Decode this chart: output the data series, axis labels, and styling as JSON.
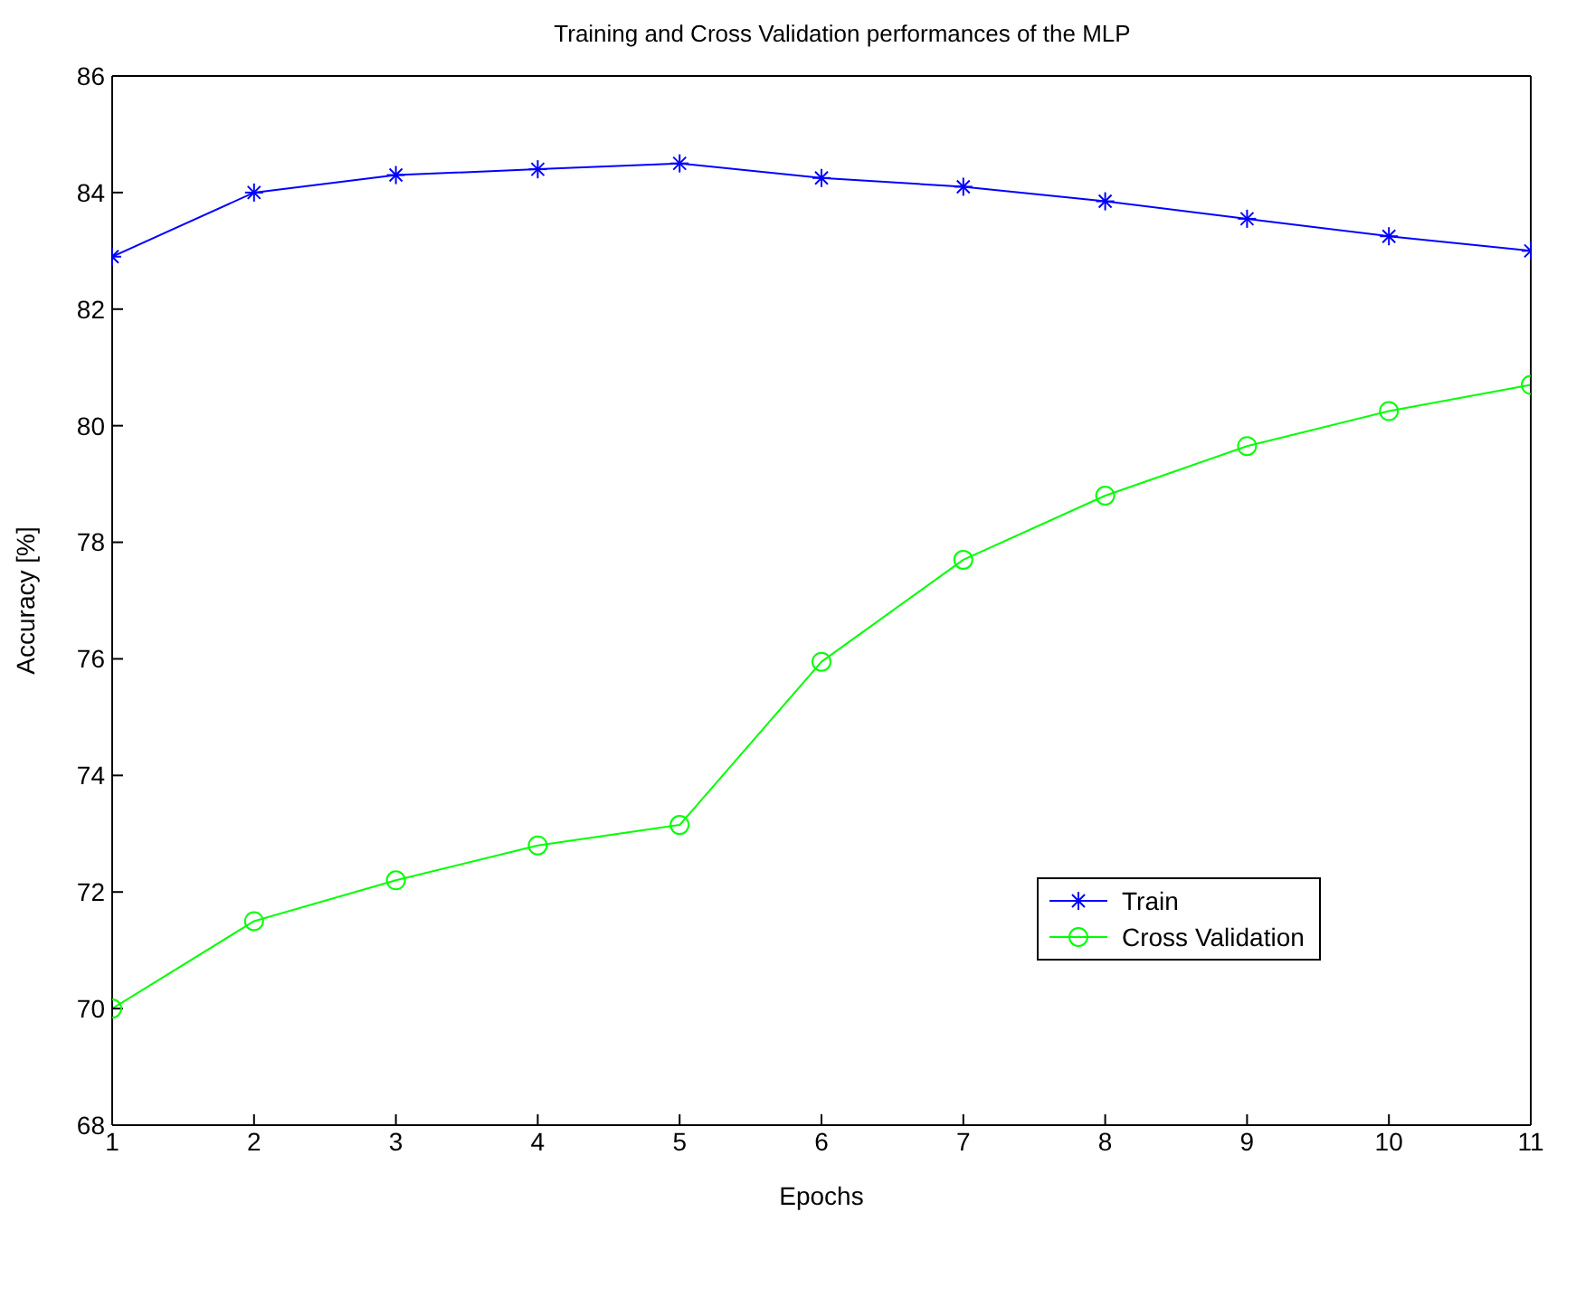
{
  "chart_data": {
    "type": "line",
    "title": "Training and Cross Validation performances of the MLP",
    "xlabel": "Epochs",
    "ylabel": "Accuracy [%]",
    "x": [
      1,
      2,
      3,
      4,
      5,
      6,
      7,
      8,
      9,
      10,
      11
    ],
    "xlim": [
      1,
      11
    ],
    "xticks": [
      1,
      2,
      3,
      4,
      5,
      6,
      7,
      8,
      9,
      10,
      11
    ],
    "ylim": [
      68,
      86
    ],
    "yticks": [
      68,
      70,
      72,
      74,
      76,
      78,
      80,
      82,
      84,
      86
    ],
    "grid": false,
    "legend": "right",
    "line_style": "solid",
    "series": [
      {
        "name": "Train",
        "color": "#0000ff",
        "marker": "cross",
        "values": [
          82.9,
          84.0,
          84.3,
          84.4,
          84.5,
          84.25,
          84.1,
          83.85,
          83.55,
          83.25,
          83.0
        ]
      },
      {
        "name": "Cross Validation",
        "color": "#00ff00",
        "marker": "circle",
        "values": [
          70.0,
          71.5,
          72.2,
          72.8,
          73.15,
          75.95,
          77.7,
          78.8,
          79.65,
          80.25,
          80.7
        ]
      }
    ]
  }
}
